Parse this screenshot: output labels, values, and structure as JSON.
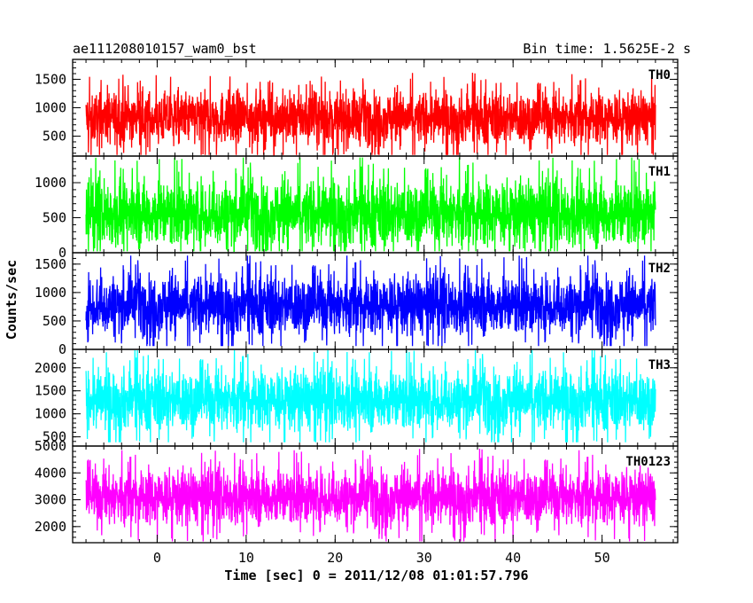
{
  "header": {
    "left": "ae111208010157_wam0_bst",
    "right": "Bin time: 1.5625E-2 s"
  },
  "chart_data": {
    "type": "line",
    "xlabel": "Time [sec] 0 = 2011/12/08 01:01:57.796",
    "ylabel": "Counts/sec",
    "xlim": [
      -9.5,
      58.5
    ],
    "xticks": [
      0,
      10,
      20,
      30,
      40,
      50
    ],
    "x_range_data": [
      -8,
      56
    ],
    "panels": [
      {
        "name": "TH0",
        "color": "#ff0000",
        "ylim": [
          150,
          1850
        ],
        "yticks": [
          500,
          1000,
          1500
        ],
        "mean": 820,
        "spread": 230,
        "min": 170,
        "max": 1820
      },
      {
        "name": "TH1",
        "color": "#00ff00",
        "ylim": [
          0,
          1380
        ],
        "yticks": [
          0,
          500,
          1000
        ],
        "mean": 560,
        "spread": 240,
        "min": 20,
        "max": 1360
      },
      {
        "name": "TH2",
        "color": "#0000ff",
        "ylim": [
          0,
          1700
        ],
        "yticks": [
          0,
          500,
          1000,
          1500
        ],
        "mean": 780,
        "spread": 260,
        "min": 60,
        "max": 1650
      },
      {
        "name": "TH3",
        "color": "#00ffff",
        "ylim": [
          300,
          2400
        ],
        "yticks": [
          500,
          1000,
          1500,
          2000
        ],
        "mean": 1300,
        "spread": 330,
        "min": 380,
        "max": 2380
      },
      {
        "name": "TH0123",
        "color": "#ff00ff",
        "ylim": [
          1400,
          5000
        ],
        "yticks": [
          2000,
          3000,
          4000,
          5000
        ],
        "mean": 3100,
        "spread": 520,
        "min": 1450,
        "max": 4950
      }
    ]
  }
}
